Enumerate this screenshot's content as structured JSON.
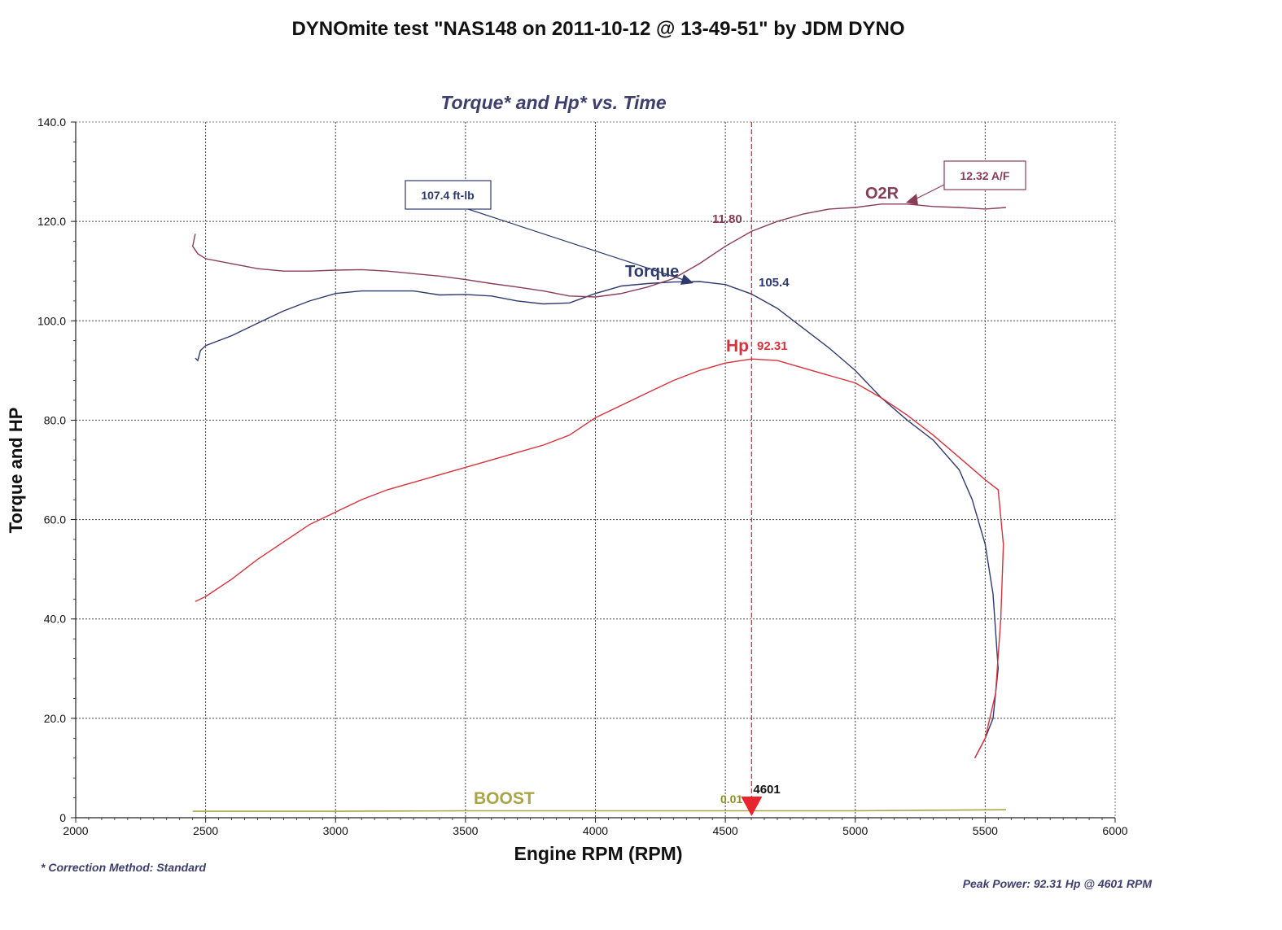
{
  "title": "DYNOmite test \"NAS148 on 2011-10-12 @ 13-49-51\" by JDM DYNO",
  "subtitle": "Torque* and Hp* vs. Time",
  "footnote": "* Correction Method: Standard",
  "peak_power": "Peak Power: 92.31 Hp @ 4601 RPM",
  "colors": {
    "torque": "#2e3a6e",
    "hp": "#d6323c",
    "o2r": "#8a3c57",
    "boost": "#a8a548",
    "marker": "#e8252e",
    "grid": "#444444"
  },
  "chart_data": {
    "type": "line",
    "title": "Torque* and Hp* vs. Time",
    "xlabel": "Engine RPM (RPM)",
    "ylabel": "Torque and HP",
    "xlim": [
      2000,
      6000
    ],
    "ylim": [
      0,
      140
    ],
    "xticks": [
      2000,
      2500,
      3000,
      3500,
      4000,
      4500,
      5000,
      5500,
      6000
    ],
    "xtick_labels": [
      "2000",
      "2500",
      "3000",
      "3500",
      "4000",
      "4500",
      "5000",
      "5500",
      "6000"
    ],
    "yticks": [
      0,
      20,
      40,
      60,
      80,
      100,
      120,
      140
    ],
    "ytick_labels": [
      "0",
      "20.0",
      "40.0",
      "60.0",
      "80.0",
      "100.0",
      "120.0",
      "140.0"
    ],
    "grid": true,
    "series": [
      {
        "name": "Torque",
        "color": "#2e3a6e",
        "points": [
          [
            2460,
            92.5
          ],
          [
            2470,
            92
          ],
          [
            2480,
            94
          ],
          [
            2500,
            95
          ],
          [
            2600,
            97
          ],
          [
            2700,
            99.5
          ],
          [
            2800,
            102
          ],
          [
            2900,
            104
          ],
          [
            3000,
            105.5
          ],
          [
            3100,
            106
          ],
          [
            3200,
            106
          ],
          [
            3300,
            106
          ],
          [
            3400,
            105.2
          ],
          [
            3500,
            105.3
          ],
          [
            3600,
            105
          ],
          [
            3700,
            104
          ],
          [
            3800,
            103.4
          ],
          [
            3900,
            103.6
          ],
          [
            4000,
            105.5
          ],
          [
            4100,
            107
          ],
          [
            4200,
            107.5
          ],
          [
            4300,
            107.8
          ],
          [
            4400,
            107.9
          ],
          [
            4500,
            107.3
          ],
          [
            4600,
            105.4
          ],
          [
            4700,
            102.5
          ],
          [
            4800,
            98.5
          ],
          [
            4900,
            94.5
          ],
          [
            5000,
            90
          ],
          [
            5100,
            84.5
          ],
          [
            5200,
            80
          ],
          [
            5300,
            76
          ],
          [
            5400,
            70
          ],
          [
            5450,
            64
          ],
          [
            5500,
            55
          ],
          [
            5530,
            45
          ],
          [
            5550,
            30
          ],
          [
            5530,
            20
          ],
          [
            5500,
            16
          ],
          [
            5460,
            12
          ]
        ]
      },
      {
        "name": "Hp",
        "color": "#d6323c",
        "points": [
          [
            2460,
            43.5
          ],
          [
            2500,
            44.5
          ],
          [
            2600,
            48
          ],
          [
            2700,
            52
          ],
          [
            2800,
            55.5
          ],
          [
            2900,
            59
          ],
          [
            3000,
            61.5
          ],
          [
            3100,
            64
          ],
          [
            3200,
            66
          ],
          [
            3300,
            67.5
          ],
          [
            3400,
            69
          ],
          [
            3500,
            70.5
          ],
          [
            3600,
            72
          ],
          [
            3700,
            73.5
          ],
          [
            3800,
            75
          ],
          [
            3900,
            77
          ],
          [
            4000,
            80.5
          ],
          [
            4100,
            83
          ],
          [
            4200,
            85.5
          ],
          [
            4300,
            88
          ],
          [
            4400,
            90
          ],
          [
            4500,
            91.5
          ],
          [
            4601,
            92.31
          ],
          [
            4700,
            92
          ],
          [
            4800,
            90.5
          ],
          [
            4900,
            89
          ],
          [
            5000,
            87.5
          ],
          [
            5100,
            84.5
          ],
          [
            5200,
            81
          ],
          [
            5300,
            77
          ],
          [
            5400,
            72.5
          ],
          [
            5500,
            68
          ],
          [
            5550,
            66
          ],
          [
            5570,
            55
          ],
          [
            5560,
            40
          ],
          [
            5540,
            25
          ],
          [
            5500,
            16
          ],
          [
            5460,
            12
          ]
        ]
      },
      {
        "name": "O2R",
        "color": "#8a3c57",
        "points": [
          [
            2460,
            117.5
          ],
          [
            2450,
            115
          ],
          [
            2470,
            113.5
          ],
          [
            2500,
            112.5
          ],
          [
            2600,
            111.5
          ],
          [
            2700,
            110.5
          ],
          [
            2800,
            110
          ],
          [
            2900,
            110
          ],
          [
            3000,
            110.2
          ],
          [
            3100,
            110.3
          ],
          [
            3200,
            110
          ],
          [
            3300,
            109.5
          ],
          [
            3400,
            109
          ],
          [
            3500,
            108.3
          ],
          [
            3600,
            107.5
          ],
          [
            3700,
            106.8
          ],
          [
            3800,
            106
          ],
          [
            3900,
            105
          ],
          [
            4000,
            104.8
          ],
          [
            4100,
            105.5
          ],
          [
            4200,
            106.8
          ],
          [
            4300,
            108.5
          ],
          [
            4400,
            111.5
          ],
          [
            4500,
            115
          ],
          [
            4600,
            118
          ],
          [
            4700,
            120
          ],
          [
            4800,
            121.5
          ],
          [
            4900,
            122.5
          ],
          [
            5000,
            122.8
          ],
          [
            5100,
            123.5
          ],
          [
            5200,
            123.5
          ],
          [
            5300,
            123
          ],
          [
            5400,
            122.8
          ],
          [
            5500,
            122.5
          ],
          [
            5580,
            122.8
          ]
        ]
      },
      {
        "name": "BOOST",
        "color": "#a8a548",
        "points": [
          [
            2450,
            1.3
          ],
          [
            3000,
            1.3
          ],
          [
            3500,
            1.4
          ],
          [
            4000,
            1.4
          ],
          [
            4600,
            1.4
          ],
          [
            5000,
            1.4
          ],
          [
            5580,
            1.6
          ]
        ]
      }
    ],
    "marker": {
      "rpm": 4601,
      "label": "4601"
    },
    "annotations": {
      "torque_box": "107.4 ft-lb",
      "torque_label": "Torque",
      "torque_value": "105.4",
      "hp_label": "Hp",
      "hp_value": "92.31",
      "o2r_label": "O2R",
      "o2r_box": "12.32 A/F",
      "o2r_value": "11.80",
      "boost_label": "BOOST",
      "boost_value": "0.01"
    }
  }
}
